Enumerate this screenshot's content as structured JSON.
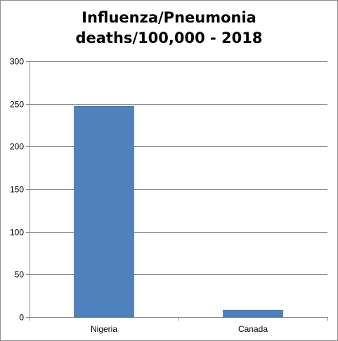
{
  "chart_data": {
    "type": "bar",
    "title_lines": [
      "Influenza/Pneumonia",
      "deaths/100,000 - 2018"
    ],
    "categories": [
      "Nigeria",
      "Canada"
    ],
    "values": [
      247,
      8
    ],
    "xlabel": "",
    "ylabel": "",
    "ylim": [
      0,
      300
    ],
    "yticks": [
      0,
      50,
      100,
      150,
      200,
      250,
      300
    ],
    "grid": true,
    "legend": "none",
    "bar_color": "#4f81bd",
    "bar_edge_color": "#3a6ea5",
    "grid_color": "#8c8c8c"
  }
}
